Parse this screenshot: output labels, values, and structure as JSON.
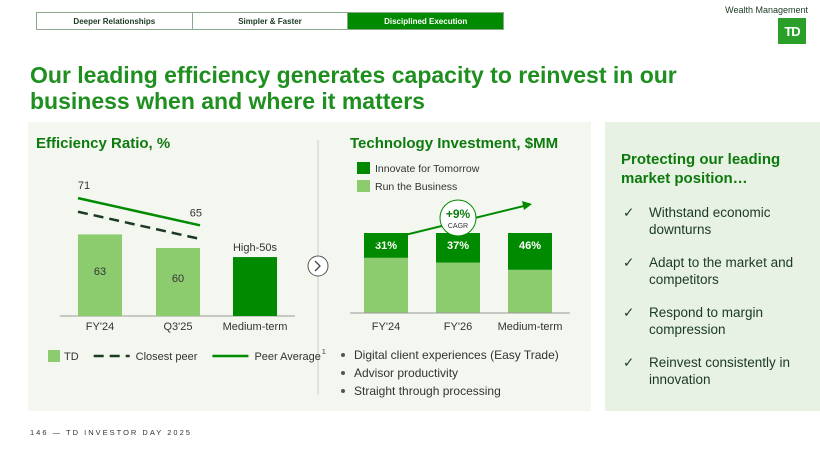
{
  "header": {
    "tabs": [
      "Deeper Relationships",
      "Simpler & Faster",
      "Disciplined Execution"
    ],
    "active_tab": 2,
    "division": "Wealth Management",
    "logo": "TD"
  },
  "title": "Our leading efficiency generates capacity to reinvest in our business when and where it matters",
  "chart_data": [
    {
      "type": "bar_line",
      "title": "Efficiency Ratio, %",
      "categories": [
        "FY'24",
        "Q3'25",
        "Medium-term"
      ],
      "ylim": [
        45,
        75
      ],
      "series": [
        {
          "name": "TD",
          "kind": "bar",
          "color": "#8dcc6e",
          "colors": [
            "#8dcc6e",
            "#8dcc6e",
            "#008a00"
          ],
          "values": [
            63,
            60,
            58
          ],
          "value_labels": [
            "63",
            "60",
            "High-50s"
          ]
        },
        {
          "name": "Closest peer",
          "kind": "line",
          "dashed": true,
          "color": "#1a3a22",
          "values": [
            68,
            62,
            null
          ]
        },
        {
          "name": "Peer Average",
          "kind": "line",
          "dashed": false,
          "color": "#008a00",
          "footnote_mark": "1",
          "values": [
            71,
            65,
            null
          ],
          "value_labels": [
            "71",
            "65",
            null
          ]
        }
      ]
    },
    {
      "type": "stacked_bar",
      "title": "Technology Investment, $MM",
      "categories": [
        "FY'24",
        "FY'26",
        "Medium-term"
      ],
      "ylim": [
        0,
        100
      ],
      "series": [
        {
          "name": "Run the Business",
          "color": "#8dcc6e",
          "values": [
            69,
            63,
            54
          ]
        },
        {
          "name": "Innovate for Tomorrow",
          "color": "#008a00",
          "values": [
            31,
            37,
            46
          ],
          "value_labels": [
            "31%",
            "37%",
            "46%"
          ]
        }
      ],
      "annotation": {
        "value": "+9%",
        "label": "CAGR"
      },
      "bullets": [
        "Digital client experiences (Easy Trade)",
        "Advisor productivity",
        "Straight through processing"
      ]
    }
  ],
  "sidebar": {
    "heading": "Protecting our leading market position…",
    "check": "✓",
    "items": [
      "Withstand economic downturns",
      "Adapt to the market and competitors",
      "Respond to margin compression",
      "Reinvest consistently in innovation"
    ]
  },
  "footer": "146 — TD INVESTOR DAY 2025"
}
